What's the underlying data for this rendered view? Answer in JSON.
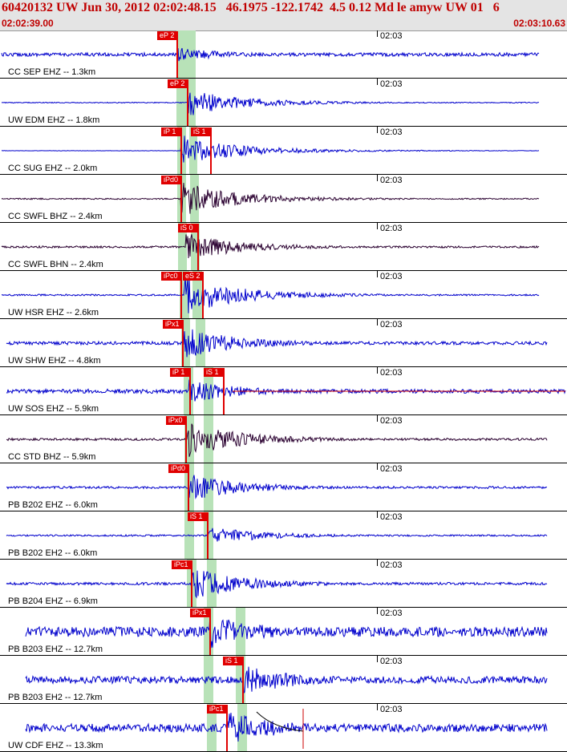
{
  "header": {
    "title": "60420132 UW Jun 30, 2012 02:02:48.15   46.1975 -122.1742  4.5 0.12 Md le amyw UW 01   6",
    "start_time": "02:02:39.00",
    "end_time": "02:03:10.63"
  },
  "colors": {
    "header_text": "#c00000",
    "header_bg": "#e4e4e4",
    "pick": "#e00000",
    "short_period_trace": "#0000cc",
    "broadband_trace": "#2a0030",
    "window": "#b8e2b8"
  },
  "tick_label": "02:03",
  "panels": [
    {
      "label": "CC SEP EHZ -- 1.3km",
      "color": "short",
      "amp": 7,
      "noise": 2.2,
      "arrival": 222,
      "picks": [
        {
          "text": "eP 2",
          "x": 196
        }
      ],
      "windows": [
        [
          220,
          231
        ],
        [
          231,
          244
        ]
      ]
    },
    {
      "label": "UW EDM EHZ -- 1.8km",
      "color": "short",
      "amp": 14,
      "noise": 0.6,
      "arrival": 235,
      "picks": [
        {
          "text": "eP 2",
          "x": 209
        }
      ],
      "windows": [
        [
          220,
          233
        ],
        [
          233,
          244
        ]
      ]
    },
    {
      "label": "CC SUG EHZ -- 2.0km",
      "color": "short",
      "amp": 16,
      "noise": 0.2,
      "arrival": 226,
      "picks": [
        {
          "text": "iP 1",
          "x": 201
        },
        {
          "text": "iS 1",
          "x": 238
        }
      ],
      "windows": [
        [
          221,
          232
        ],
        [
          236,
          246
        ]
      ]
    },
    {
      "label": "CC SWFL BHZ -- 2.4km",
      "color": "broad",
      "amp": 18,
      "noise": 0.8,
      "arrival": 226,
      "picks": [
        {
          "text": "iPd0",
          "x": 201
        }
      ],
      "windows": [
        [
          221,
          232
        ],
        [
          237,
          248
        ]
      ]
    },
    {
      "label": "CC SWFL BHN -- 2.4km",
      "color": "broad",
      "amp": 14,
      "noise": 1.2,
      "arrival": 232,
      "picks": [
        {
          "text": "iS 0",
          "x": 222
        }
      ],
      "windows": [
        [
          222,
          233
        ],
        [
          238,
          249
        ]
      ]
    },
    {
      "label": "UW HSR EHZ -- 2.6km",
      "color": "short",
      "amp": 20,
      "noise": 1.0,
      "arrival": 230,
      "picks": [
        {
          "text": "iPc0",
          "x": 201
        },
        {
          "text": "eS 2",
          "x": 228
        }
      ],
      "windows": [
        [
          224,
          236
        ],
        [
          240,
          252
        ]
      ]
    },
    {
      "label": "UW SHW EHZ -- 4.8km",
      "color": "short",
      "amp": 16,
      "noise": 2.0,
      "arrival": 230,
      "picks": [
        {
          "text": "iPx1",
          "x": 203
        }
      ],
      "windows": [
        [
          226,
          237
        ],
        [
          244,
          256
        ]
      ]
    },
    {
      "label": "UW SOS EHZ -- 5.9km",
      "color": "short",
      "amp": 12,
      "noise": 2.6,
      "arrival": 236,
      "picks": [
        {
          "text": "iP 1",
          "x": 212
        },
        {
          "text": "iS 1",
          "x": 254
        }
      ],
      "windows": [
        [
          229,
          241
        ],
        [
          254,
          266
        ]
      ],
      "red_tail": true
    },
    {
      "label": "CC STD BHZ -- 5.9km",
      "color": "broad",
      "amp": 18,
      "noise": 1.4,
      "arrival": 234,
      "picks": [
        {
          "text": "iPx0",
          "x": 207
        }
      ],
      "windows": [
        [
          230,
          242
        ],
        [
          254,
          266
        ]
      ]
    },
    {
      "label": "PB B202 EHZ -- 6.0km",
      "color": "short",
      "amp": 14,
      "noise": 1.4,
      "arrival": 236,
      "picks": [
        {
          "text": "iPd0",
          "x": 210
        }
      ],
      "windows": [
        [
          230,
          242
        ],
        [
          254,
          266
        ]
      ]
    },
    {
      "label": "PB B202 EH2 -- 6.0km",
      "color": "short",
      "amp": 10,
      "noise": 1.0,
      "arrival": 260,
      "picks": [
        {
          "text": "iS 1",
          "x": 234
        }
      ],
      "windows": [
        [
          230,
          242
        ],
        [
          254,
          266
        ]
      ]
    },
    {
      "label": "PB B204 EHZ -- 6.9km",
      "color": "short",
      "amp": 16,
      "noise": 1.6,
      "arrival": 240,
      "picks": [
        {
          "text": "iPc1",
          "x": 214
        }
      ],
      "windows": [
        [
          233,
          245
        ],
        [
          258,
          270
        ]
      ]
    },
    {
      "label": "PB B203 EHZ -- 12.7km",
      "color": "short",
      "amp": 18,
      "noise": 6.0,
      "arrival": 262,
      "picks": [
        {
          "text": "iPx1",
          "x": 237
        }
      ],
      "windows": [
        [
          254,
          266
        ],
        [
          294,
          306
        ]
      ]
    },
    {
      "label": "PB B203 EH2 -- 12.7km",
      "color": "short",
      "amp": 16,
      "noise": 4.4,
      "arrival": 304,
      "picks": [
        {
          "text": "iS 1",
          "x": 278
        }
      ],
      "windows": [
        [
          254,
          266
        ],
        [
          294,
          306
        ]
      ]
    },
    {
      "label": "UW CDF EHZ -- 13.3km",
      "color": "short",
      "amp": 18,
      "noise": 5.0,
      "arrival": 283,
      "picks": [
        {
          "text": "iPc1",
          "x": 258
        }
      ],
      "windows": [
        [
          258,
          270
        ],
        [
          296,
          308
        ]
      ],
      "coda_marker": true
    }
  ]
}
